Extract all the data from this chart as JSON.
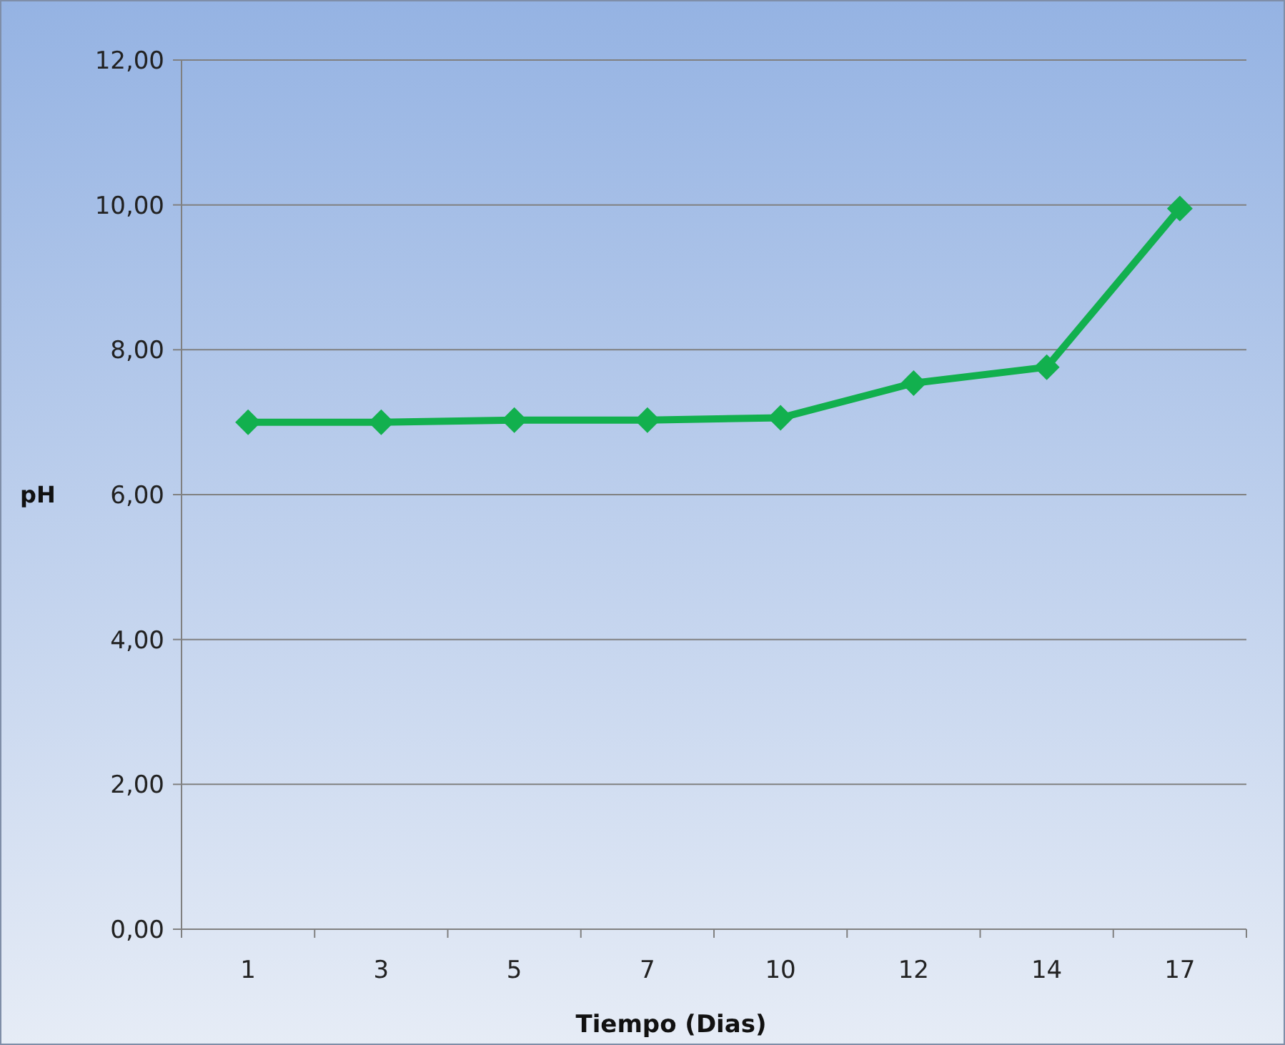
{
  "chart_data": {
    "type": "line",
    "xlabel": "Tiempo (Dias)",
    "ylabel": "pH",
    "categories": [
      "1",
      "3",
      "5",
      "7",
      "10",
      "12",
      "14",
      "17"
    ],
    "series": [
      {
        "color": "#12b04e",
        "values": [
          7.0,
          7.0,
          7.03,
          7.03,
          7.06,
          7.54,
          7.76,
          9.95
        ]
      }
    ],
    "ylim": [
      0,
      12
    ],
    "yticks": [
      {
        "value": 0,
        "label": "0,00"
      },
      {
        "value": 2,
        "label": "2,00"
      },
      {
        "value": 4,
        "label": "4,00"
      },
      {
        "value": 6,
        "label": "6,00"
      },
      {
        "value": 8,
        "label": "8,00"
      },
      {
        "value": 10,
        "label": "10,00"
      },
      {
        "value": 12,
        "label": "12,00"
      }
    ],
    "grid": "y",
    "marker": "diamond",
    "line_style": "solid"
  }
}
